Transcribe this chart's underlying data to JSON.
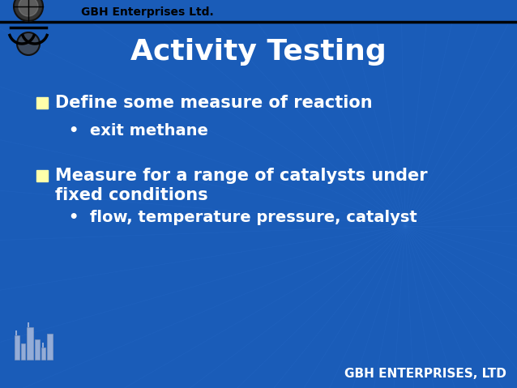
{
  "title": "Activity Testing",
  "bg_color": "#1a5cb8",
  "header_bg_color": "#1a5cb8",
  "header_line_color": "#000000",
  "header_text": "GBH Enterprises Ltd.",
  "title_color": "#ffffff",
  "title_fontsize": 26,
  "bullet_color": "#ffffff",
  "bullet1_main": "Define some measure of reaction",
  "bullet1_sub": "exit methane",
  "bullet2_main_line1": "Measure for a range of catalysts under",
  "bullet2_main_line2": "fixed conditions",
  "bullet2_sub": "flow, temperature pressure, catalyst",
  "footer_text": "GBH ENTERPRISES, LTD",
  "footer_color": "#ffffff",
  "square_bullet_color": "#ffffaa",
  "main_fontsize": 15,
  "sub_fontsize": 14,
  "footer_fontsize": 11,
  "header_fontsize": 10,
  "radial_color": "#2a6ecc",
  "radial_alpha": 0.25
}
